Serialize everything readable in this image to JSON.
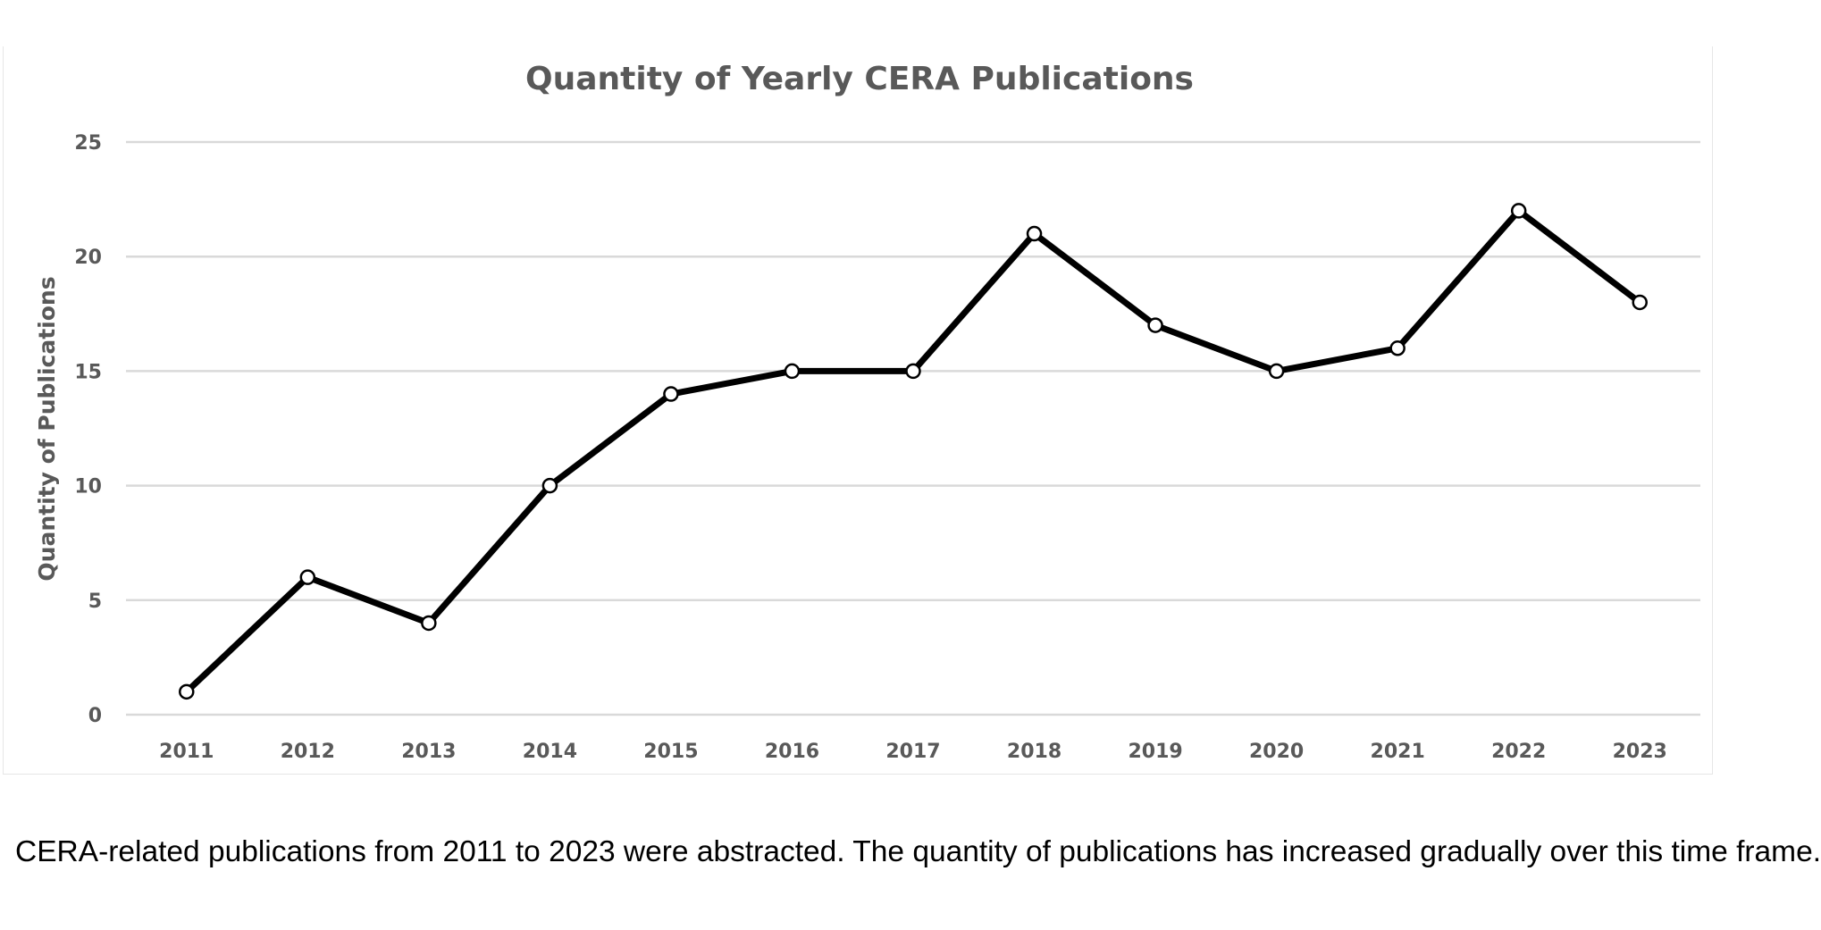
{
  "chart_data": {
    "type": "line",
    "title": "Quantity of Yearly CERA Publications",
    "xlabel": "",
    "ylabel": "Quantity of Publications",
    "categories": [
      "2011",
      "2012",
      "2013",
      "2014",
      "2015",
      "2016",
      "2017",
      "2018",
      "2019",
      "2020",
      "2021",
      "2022",
      "2023"
    ],
    "series": [
      {
        "values": [
          1,
          6,
          4,
          10,
          14,
          15,
          15,
          21,
          17,
          15,
          16,
          22,
          18
        ],
        "color": "#000000",
        "marker": "circle",
        "marker_fill": "#ffffff"
      }
    ],
    "yticks": [
      0,
      5,
      10,
      15,
      20,
      25
    ],
    "ylim": [
      0,
      25
    ],
    "grid": true,
    "grid_axis": "y",
    "legend": "none"
  },
  "caption": "CERA-related publications from 2011 to 2023 were abstracted. The quantity of publications has increased gradually over this time frame."
}
